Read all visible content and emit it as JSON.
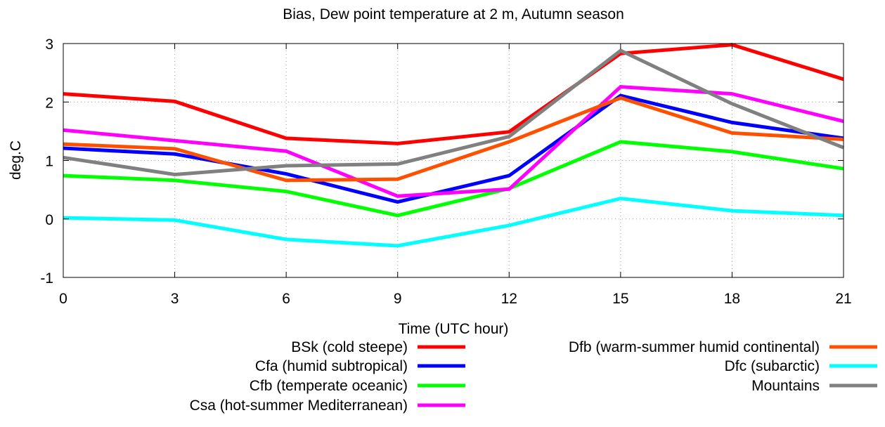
{
  "chart_data": {
    "type": "line",
    "title": "Bias, Dew point temperature at 2 m, Autumn season",
    "xlabel": "Time (UTC hour)",
    "ylabel": "deg.C",
    "x": [
      0,
      3,
      6,
      9,
      12,
      15,
      18,
      21
    ],
    "xlim": [
      0,
      21
    ],
    "ylim": [
      -1,
      3
    ],
    "xticks": [
      "0",
      "3",
      "6",
      "9",
      "12",
      "15",
      "18",
      "21"
    ],
    "yticks": [
      "-1",
      "0",
      "1",
      "2",
      "3"
    ],
    "grid": true,
    "legend_position": "below",
    "series": [
      {
        "name": "BSk (cold steepe)",
        "color": "#ff0000",
        "values": [
          2.14,
          2.01,
          1.38,
          1.29,
          1.49,
          2.83,
          2.98,
          2.39
        ]
      },
      {
        "name": "Cfa (humid subtropical)",
        "color": "#0000ff",
        "values": [
          1.21,
          1.11,
          0.77,
          0.29,
          0.74,
          2.11,
          1.65,
          1.38
        ]
      },
      {
        "name": "Cfb (temperate oceanic)",
        "color": "#00ff00",
        "values": [
          0.74,
          0.66,
          0.47,
          0.06,
          0.52,
          1.32,
          1.15,
          0.86
        ]
      },
      {
        "name": "Csa (hot-summer Mediterranean)",
        "color": "#ff00ff",
        "values": [
          1.52,
          1.34,
          1.16,
          0.39,
          0.51,
          2.26,
          2.14,
          1.67
        ]
      },
      {
        "name": "Dfb (warm-summer humid continental)",
        "color": "#ff5000",
        "values": [
          1.28,
          1.2,
          0.66,
          0.68,
          1.32,
          2.07,
          1.47,
          1.36
        ]
      },
      {
        "name": "Dfc (subarctic)",
        "color": "#00ffff",
        "values": [
          0.02,
          -0.02,
          -0.35,
          -0.46,
          -0.11,
          0.35,
          0.14,
          0.06
        ]
      },
      {
        "name": "Mountains",
        "color": "#808080",
        "values": [
          1.05,
          0.76,
          0.91,
          0.94,
          1.41,
          2.88,
          1.97,
          1.22
        ]
      }
    ]
  }
}
